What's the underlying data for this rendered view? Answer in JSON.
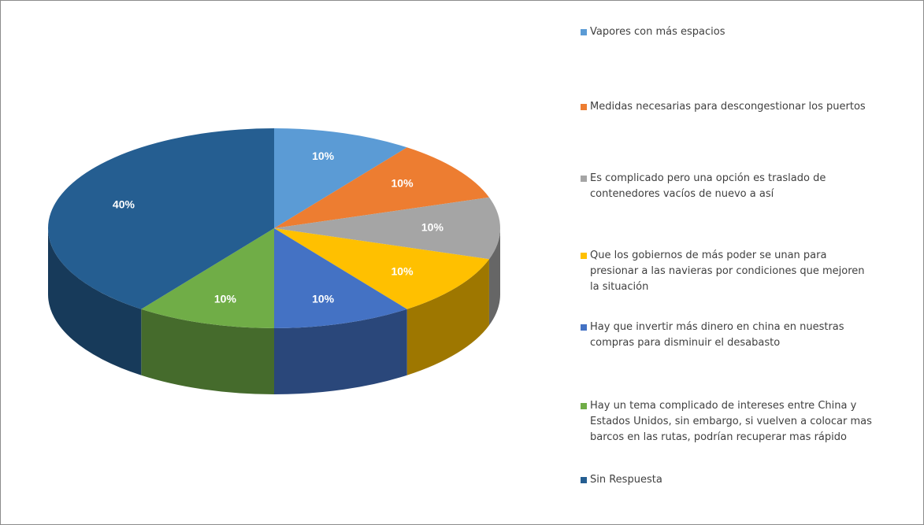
{
  "chart_data": {
    "type": "pie",
    "categories": [
      "Vapores con más espacios",
      "Medidas necesarias para descongestionar los puertos",
      "Es complicado pero una opción es traslado de contenedores vacíos de nuevo a así",
      "Que los gobiernos de más poder se unan para presionar a las navieras por condiciones que mejoren la situación",
      "Hay que invertir más dinero en china en nuestras compras para disminuir el desabasto",
      "Hay un tema complicado de intereses entre China y Estados Unidos, sin embargo, si vuelven a colocar mas barcos en las rutas, podrían recuperar mas rápido",
      "Sin Respuesta"
    ],
    "values": [
      10,
      10,
      10,
      10,
      10,
      10,
      40
    ],
    "value_labels": [
      "10%",
      "10%",
      "10%",
      "10%",
      "10%",
      "10%",
      "40%"
    ],
    "colors": [
      "#5b9bd5",
      "#ed7d31",
      "#a5a5a5",
      "#ffc000",
      "#4472c4",
      "#70ad47",
      "#255e91"
    ],
    "legend": "right"
  }
}
